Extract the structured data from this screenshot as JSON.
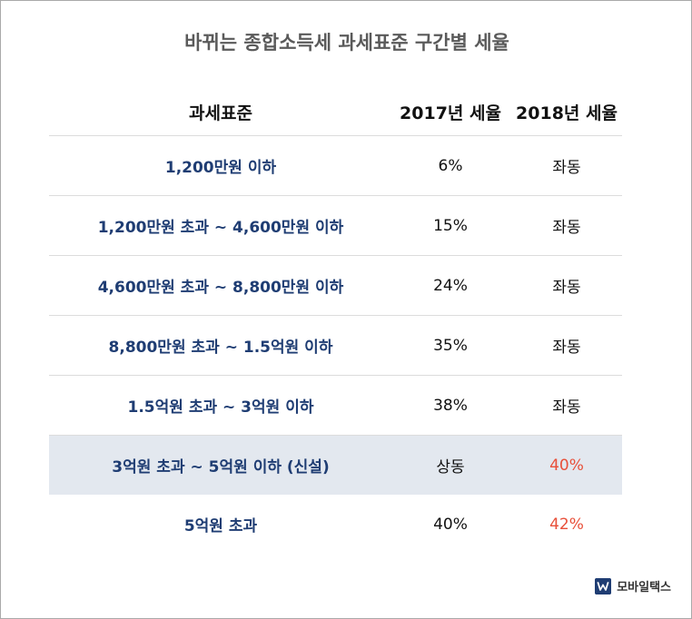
{
  "title": "바뀌는 종합소득세 과세표준 구간별 세율",
  "chart_data": {
    "type": "table",
    "columns": [
      "과세표준",
      "2017년 세율",
      "2018년 세율"
    ],
    "rows": [
      [
        "1,200만원 이하",
        "6%",
        "좌동"
      ],
      [
        "1,200만원 초과 ~ 4,600만원 이하",
        "15%",
        "좌동"
      ],
      [
        "4,600만원 초과 ~ 8,800만원 이하",
        "24%",
        "좌동"
      ],
      [
        "8,800만원 초과 ~ 1.5억원 이하",
        "35%",
        "좌동"
      ],
      [
        "1.5억원 초과 ~ 3억원 이하",
        "38%",
        "좌동"
      ],
      [
        "3억원 초과 ~ 5억원 이하 (신설)",
        "상동",
        "40%"
      ],
      [
        "5억원 초과",
        "40%",
        "42%"
      ]
    ],
    "highlight_row": 5,
    "highlight_color": "#e3e8ef",
    "changed_value_color": "#e8503a",
    "bracket_text_color": "#1f3d73"
  },
  "brand": {
    "name": "모바일택스",
    "logo_glyph": "w",
    "logo_color": "#1f3d73"
  }
}
